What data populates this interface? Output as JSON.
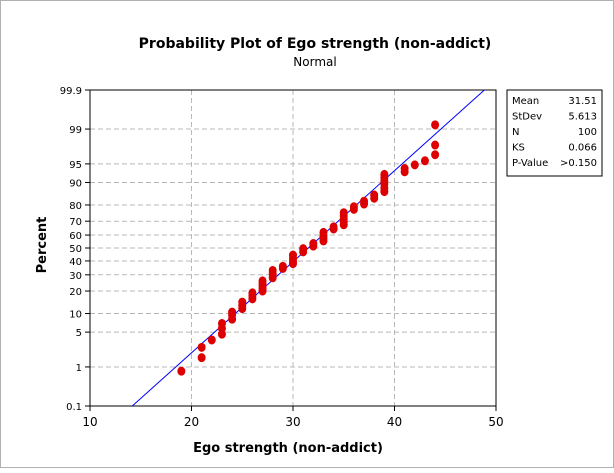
{
  "chart_data": {
    "type": "scatter",
    "title": "Probability Plot of Ego strength (non-addict)",
    "subtitle": "Normal",
    "xlabel": "Ego strength (non-addict)",
    "ylabel": "Percent",
    "xlim": [
      10,
      50
    ],
    "ylim_percent": [
      0.1,
      99.9
    ],
    "y_scale": "normal-probability",
    "grid": true,
    "x_ticks": [
      10,
      20,
      30,
      40,
      50
    ],
    "y_ticks": [
      0.1,
      1,
      5,
      10,
      20,
      30,
      40,
      50,
      60,
      70,
      80,
      90,
      95,
      99,
      99.9
    ],
    "y_tick_labels": [
      "0.1",
      "1",
      "5",
      "10",
      "20",
      "30",
      "40",
      "50",
      "60",
      "70",
      "80",
      "90",
      "95",
      "99",
      "99.9"
    ],
    "fit_line": {
      "mean": 31.51,
      "sd": 5.613,
      "color": "#0000ff"
    },
    "marker_color": "#dd0000",
    "points": [
      {
        "x": 19,
        "p": 0.8
      },
      {
        "x": 21,
        "p": 1.6
      },
      {
        "x": 21,
        "p": 2.6
      },
      {
        "x": 22,
        "p": 3.6
      },
      {
        "x": 23,
        "p": 4.6
      },
      {
        "x": 23,
        "p": 5.8
      },
      {
        "x": 23,
        "p": 7
      },
      {
        "x": 24,
        "p": 8.2
      },
      {
        "x": 24,
        "p": 9.5
      },
      {
        "x": 24,
        "p": 10.5
      },
      {
        "x": 25,
        "p": 11.8
      },
      {
        "x": 25,
        "p": 13
      },
      {
        "x": 25,
        "p": 14.5
      },
      {
        "x": 26,
        "p": 16
      },
      {
        "x": 26,
        "p": 17.5
      },
      {
        "x": 26,
        "p": 19
      },
      {
        "x": 27,
        "p": 20
      },
      {
        "x": 27,
        "p": 21.5
      },
      {
        "x": 27,
        "p": 23
      },
      {
        "x": 27,
        "p": 24.5
      },
      {
        "x": 27,
        "p": 26
      },
      {
        "x": 28,
        "p": 28
      },
      {
        "x": 28,
        "p": 30.5
      },
      {
        "x": 28,
        "p": 33
      },
      {
        "x": 29,
        "p": 34.5
      },
      {
        "x": 29,
        "p": 36
      },
      {
        "x": 30,
        "p": 38
      },
      {
        "x": 30,
        "p": 40
      },
      {
        "x": 30,
        "p": 42
      },
      {
        "x": 30,
        "p": 44.5
      },
      {
        "x": 31,
        "p": 47
      },
      {
        "x": 31,
        "p": 49.5
      },
      {
        "x": 32,
        "p": 51.5
      },
      {
        "x": 32,
        "p": 53.5
      },
      {
        "x": 33,
        "p": 55.5
      },
      {
        "x": 33,
        "p": 57.5
      },
      {
        "x": 33,
        "p": 59.5
      },
      {
        "x": 33,
        "p": 62
      },
      {
        "x": 34,
        "p": 64.5
      },
      {
        "x": 34,
        "p": 66
      },
      {
        "x": 35,
        "p": 67.5
      },
      {
        "x": 35,
        "p": 69.5
      },
      {
        "x": 35,
        "p": 71.5
      },
      {
        "x": 35,
        "p": 73.5
      },
      {
        "x": 35,
        "p": 75.5
      },
      {
        "x": 36,
        "p": 77.5
      },
      {
        "x": 36,
        "p": 79
      },
      {
        "x": 37,
        "p": 80.5
      },
      {
        "x": 37,
        "p": 82
      },
      {
        "x": 38,
        "p": 83.5
      },
      {
        "x": 38,
        "p": 85
      },
      {
        "x": 39,
        "p": 86.5
      },
      {
        "x": 39,
        "p": 88
      },
      {
        "x": 39,
        "p": 89.5
      },
      {
        "x": 39,
        "p": 90.5
      },
      {
        "x": 39,
        "p": 91.5
      },
      {
        "x": 39,
        "p": 92.5
      },
      {
        "x": 41,
        "p": 93.2
      },
      {
        "x": 41,
        "p": 94
      },
      {
        "x": 42,
        "p": 94.8
      },
      {
        "x": 43,
        "p": 95.6
      },
      {
        "x": 44,
        "p": 96.6
      },
      {
        "x": 44,
        "p": 97.8
      },
      {
        "x": 44,
        "p": 99.2
      }
    ]
  },
  "legend": {
    "rows": [
      {
        "label": "Mean",
        "value": "31.51"
      },
      {
        "label": "StDev",
        "value": "5.613"
      },
      {
        "label": "N",
        "value": "100"
      },
      {
        "label": "KS",
        "value": "0.066"
      },
      {
        "label": "P-Value",
        "value": ">0.150"
      }
    ]
  }
}
